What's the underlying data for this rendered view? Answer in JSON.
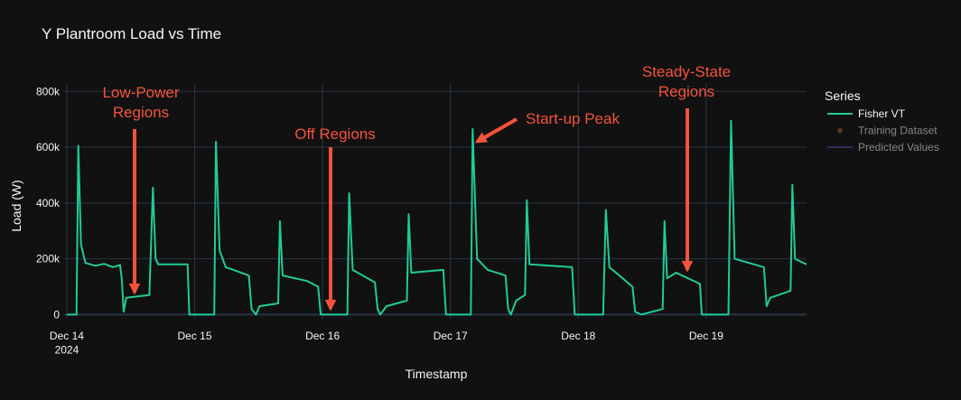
{
  "chart_data": {
    "type": "line",
    "title": "Y Plantroom Load vs Time",
    "xlabel": "Timestamp",
    "ylabel": "Load (W)",
    "legend_title": "Series",
    "legend": "right",
    "grid": true,
    "xlim": [
      "2024-12-13 23:20",
      "2024-12-19 18:50"
    ],
    "xticks": [
      {
        "value": "2024-12-14 00:00",
        "label": "Dec 14\n2024"
      },
      {
        "value": "2024-12-15 00:00",
        "label": "Dec 15"
      },
      {
        "value": "2024-12-16 00:00",
        "label": "Dec 16"
      },
      {
        "value": "2024-12-17 00:00",
        "label": "Dec 17"
      },
      {
        "value": "2024-12-18 00:00",
        "label": "Dec 18"
      },
      {
        "value": "2024-12-19 00:00",
        "label": "Dec 19"
      }
    ],
    "ylim": [
      -15000,
      830000
    ],
    "yticks": [
      0,
      {
        "value": 200000,
        "label": "200k"
      },
      {
        "value": 400000,
        "label": "400k"
      },
      {
        "value": 600000,
        "label": "600k"
      },
      {
        "value": 800000,
        "label": "800k"
      }
    ],
    "x": [
      "2024-12-14 00:00",
      "2024-12-14 01:50",
      "2024-12-14 02:10",
      "2024-12-14 02:40",
      "2024-12-14 03:30",
      "2024-12-14 05:20",
      "2024-12-14 07:00",
      "2024-12-14 08:40",
      "2024-12-14 10:00",
      "2024-12-14 10:20",
      "2024-12-14 10:40",
      "2024-12-14 11:10",
      "2024-12-14 15:30",
      "2024-12-14 16:10",
      "2024-12-14 16:40",
      "2024-12-14 17:10",
      "2024-12-14 22:40",
      "2024-12-14 23:00",
      "2024-12-15 03:40",
      "2024-12-15 04:00",
      "2024-12-15 04:40",
      "2024-12-15 05:50",
      "2024-12-15 10:10",
      "2024-12-15 10:40",
      "2024-12-15 11:30",
      "2024-12-15 12:10",
      "2024-12-15 15:40",
      "2024-12-15 16:00",
      "2024-12-15 16:30",
      "2024-12-15 21:10",
      "2024-12-15 23:10",
      "2024-12-15 23:40",
      "2024-12-16 04:40",
      "2024-12-16 05:00",
      "2024-12-16 05:40",
      "2024-12-16 09:50",
      "2024-12-16 10:20",
      "2024-12-16 10:50",
      "2024-12-16 12:00",
      "2024-12-16 15:50",
      "2024-12-16 16:10",
      "2024-12-16 16:40",
      "2024-12-16 22:40",
      "2024-12-16 23:10",
      "2024-12-17 03:50",
      "2024-12-17 04:10",
      "2024-12-17 05:00",
      "2024-12-17 07:00",
      "2024-12-17 10:20",
      "2024-12-17 10:50",
      "2024-12-17 11:20",
      "2024-12-17 12:20",
      "2024-12-17 14:00",
      "2024-12-17 14:20",
      "2024-12-17 14:50",
      "2024-12-17 22:50",
      "2024-12-17 23:20",
      "2024-12-18 04:40",
      "2024-12-18 05:10",
      "2024-12-18 05:50",
      "2024-12-18 10:10",
      "2024-12-18 10:40",
      "2024-12-18 11:50",
      "2024-12-18 15:50",
      "2024-12-18 16:10",
      "2024-12-18 16:40",
      "2024-12-18 18:20",
      "2024-12-18 22:50",
      "2024-12-18 23:10",
      "2024-12-19 04:10",
      "2024-12-19 04:40",
      "2024-12-19 05:20",
      "2024-12-19 10:50",
      "2024-12-19 11:20",
      "2024-12-19 12:00",
      "2024-12-19 15:50",
      "2024-12-19 16:10",
      "2024-12-19 16:40",
      "2024-12-19 18:50"
    ],
    "series": [
      {
        "name": "Fisher VT",
        "color": "#1fcb99",
        "mode": "line",
        "visible": true,
        "values": [
          0,
          0,
          605000,
          250000,
          185000,
          175000,
          182000,
          170000,
          178000,
          125000,
          10000,
          60000,
          70000,
          455000,
          200000,
          180000,
          180000,
          0,
          0,
          620000,
          230000,
          170000,
          140000,
          20000,
          0,
          30000,
          40000,
          335000,
          140000,
          120000,
          100000,
          0,
          0,
          435000,
          160000,
          115000,
          20000,
          0,
          30000,
          50000,
          360000,
          150000,
          160000,
          0,
          0,
          665000,
          200000,
          160000,
          140000,
          20000,
          0,
          50000,
          70000,
          410000,
          180000,
          170000,
          0,
          0,
          375000,
          170000,
          100000,
          10000,
          0,
          20000,
          335000,
          130000,
          150000,
          110000,
          0,
          0,
          695000,
          200000,
          170000,
          30000,
          60000,
          85000,
          465000,
          200000,
          180000
        ]
      },
      {
        "name": "Training Dataset",
        "color": "#a0543f",
        "mode": "markers",
        "visible": false
      },
      {
        "name": "Predicted Values",
        "color": "#6a4aa0",
        "mode": "line",
        "visible": false
      }
    ],
    "annotations": [
      {
        "text": "Low-Power\nRegions",
        "color": "#f4533b"
      },
      {
        "text": "Off Regions",
        "color": "#f4533b"
      },
      {
        "text": "Start-up Peak",
        "color": "#f4533b"
      },
      {
        "text": "Steady-State\nRegions",
        "color": "#f4533b"
      }
    ]
  }
}
